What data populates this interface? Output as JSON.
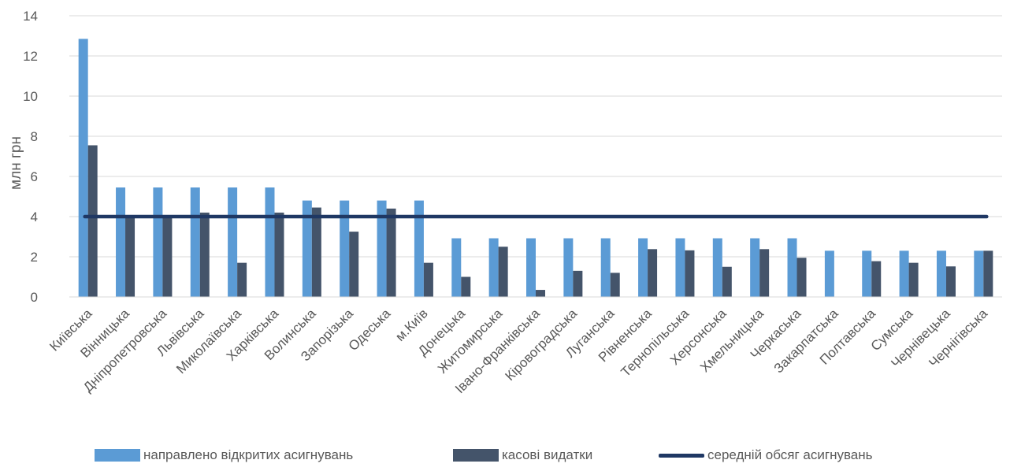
{
  "chart_data": {
    "type": "bar",
    "ylabel": "млн грн",
    "ylim": [
      0,
      14
    ],
    "yticks": [
      0,
      2,
      4,
      6,
      8,
      10,
      12,
      14
    ],
    "grid": true,
    "legend_position": "bottom",
    "categories": [
      "Київська",
      "Вінницька",
      "Дніпропетровська",
      "Львівська",
      "Миколаївська",
      "Харківська",
      "Волинська",
      "Запорізька",
      "Одеська",
      "м.Київ",
      "Донецька",
      "Житомирська",
      "Івано-Франківська",
      "Кіровоградська",
      "Луганська",
      "Рівненська",
      "Тернопільська",
      "Херсонська",
      "Хмельницька",
      "Черкаська",
      "Закарпатська",
      "Полтавська",
      "Сумська",
      "Чернівецька",
      "Чернігівська"
    ],
    "series": [
      {
        "name": "направлено відкритих асигнувань",
        "color": "#5B9BD5",
        "values": [
          12.85,
          5.45,
          5.45,
          5.45,
          5.45,
          5.45,
          4.8,
          4.8,
          4.8,
          4.8,
          2.92,
          2.92,
          2.92,
          2.92,
          2.92,
          2.92,
          2.92,
          2.92,
          2.92,
          2.92,
          2.3,
          2.3,
          2.3,
          2.3,
          2.3
        ]
      },
      {
        "name": "касові видатки",
        "color": "#44546A",
        "values": [
          7.55,
          4.0,
          4.0,
          4.2,
          1.7,
          4.2,
          4.45,
          3.25,
          4.4,
          1.7,
          1.0,
          2.5,
          0.35,
          1.3,
          1.2,
          2.38,
          2.32,
          1.5,
          2.38,
          1.95,
          0,
          1.78,
          1.7,
          1.52,
          2.3
        ]
      }
    ],
    "average_line": {
      "name": "середній обсяг асигнувань",
      "color": "#1F3864",
      "value": 4.0
    }
  }
}
